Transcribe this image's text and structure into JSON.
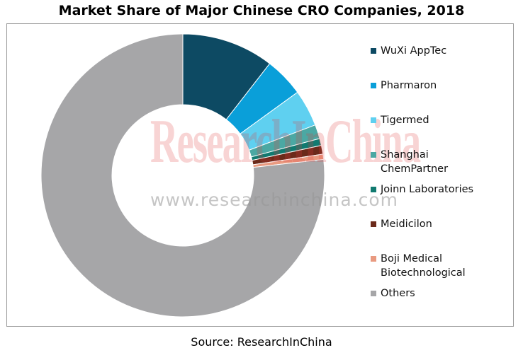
{
  "title": "Market Share of Major Chinese CRO Companies, 2018",
  "source": "Source: ResearchInChina",
  "watermark": {
    "brand": "ResearchInChina",
    "url": "www.researchinchina.com"
  },
  "chart_data": {
    "type": "pie",
    "donut": true,
    "legend_position": "right",
    "start_angle_deg": 0,
    "direction": "clockwise",
    "series": [
      {
        "name": "WuXi AppTec",
        "value": 10.5,
        "color": "#0d4a63"
      },
      {
        "name": "Pharmaron",
        "value": 4.5,
        "color": "#0a9fd9"
      },
      {
        "name": "Tigermed",
        "value": 4.2,
        "color": "#5fd0f0"
      },
      {
        "name": "Shanghai\nChemPartner",
        "value": 1.6,
        "color": "#4ba8a3"
      },
      {
        "name": "Joinn Laboratories",
        "value": 0.8,
        "color": "#117a70"
      },
      {
        "name": "Meidicilon",
        "value": 1.0,
        "color": "#6b2a1a"
      },
      {
        "name": "Boji Medical\nBiotechnological",
        "value": 0.6,
        "color": "#e99a80"
      },
      {
        "name": "Others",
        "value": 76.8,
        "color": "#a6a6a8"
      }
    ]
  }
}
